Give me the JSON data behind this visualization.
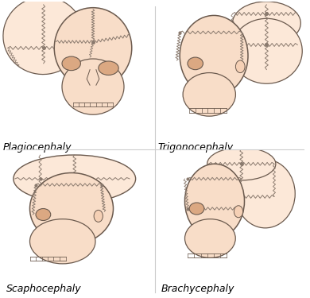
{
  "background_color": "#ffffff",
  "skin_color": "#f5d0b5",
  "skin_color_light": "#f8ddc8",
  "skin_color_lighter": "#fce8d8",
  "skin_color_dark": "#dba882",
  "outline_color": "#6b5a4e",
  "suture_color": "#8a7a6e",
  "labels": [
    "Plagiocephaly",
    "Trigonocephaly",
    "Scaphocephaly",
    "Brachycephaly"
  ],
  "label_fontsize": 9,
  "figsize": [
    3.9,
    3.75
  ],
  "dpi": 100
}
